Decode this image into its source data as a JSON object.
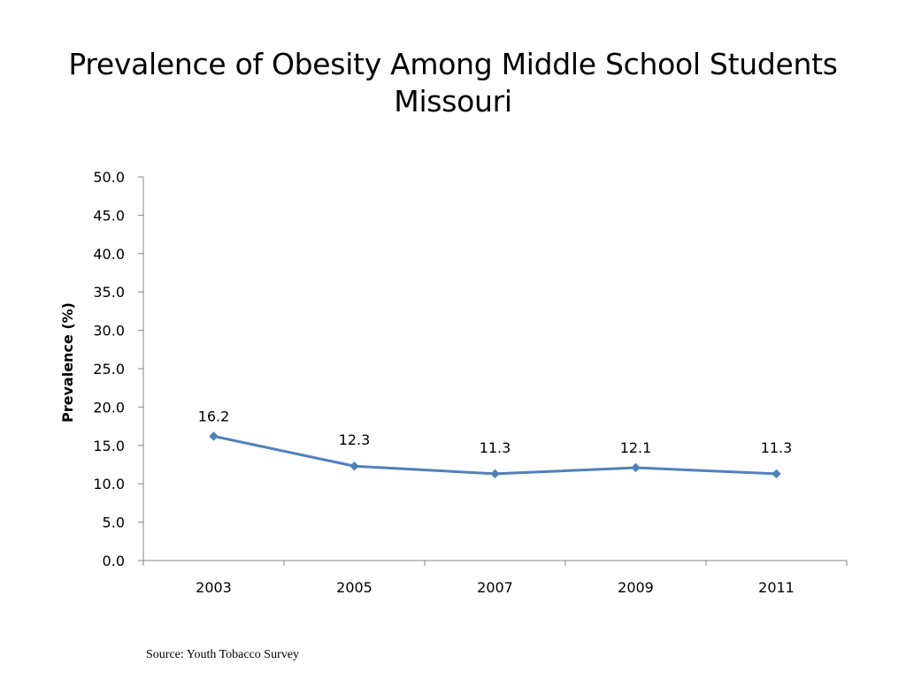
{
  "slide": {
    "title_line1": "Prevalence of Obesity Among Middle School Students",
    "title_line2": "Missouri",
    "source": "Source: Youth Tobacco Survey"
  },
  "chart_data": {
    "type": "line",
    "title": "Prevalence of Obesity Among Middle School Students Missouri",
    "xlabel": "",
    "ylabel": "Prevalence (%)",
    "categories": [
      "2003",
      "2005",
      "2007",
      "2009",
      "2011"
    ],
    "series": [
      {
        "values": [
          16.2,
          12.3,
          11.3,
          12.1,
          11.3
        ],
        "data_labels": [
          "16.2",
          "12.3",
          "11.3",
          "12.1",
          "11.3"
        ],
        "color": "#4F81BD",
        "marker": "diamond"
      }
    ],
    "ylim": [
      0,
      50
    ],
    "yticks": [
      "0.0",
      "5.0",
      "10.0",
      "15.0",
      "20.0",
      "25.0",
      "30.0",
      "35.0",
      "40.0",
      "45.0",
      "50.0"
    ],
    "grid": false,
    "legend": "none"
  }
}
